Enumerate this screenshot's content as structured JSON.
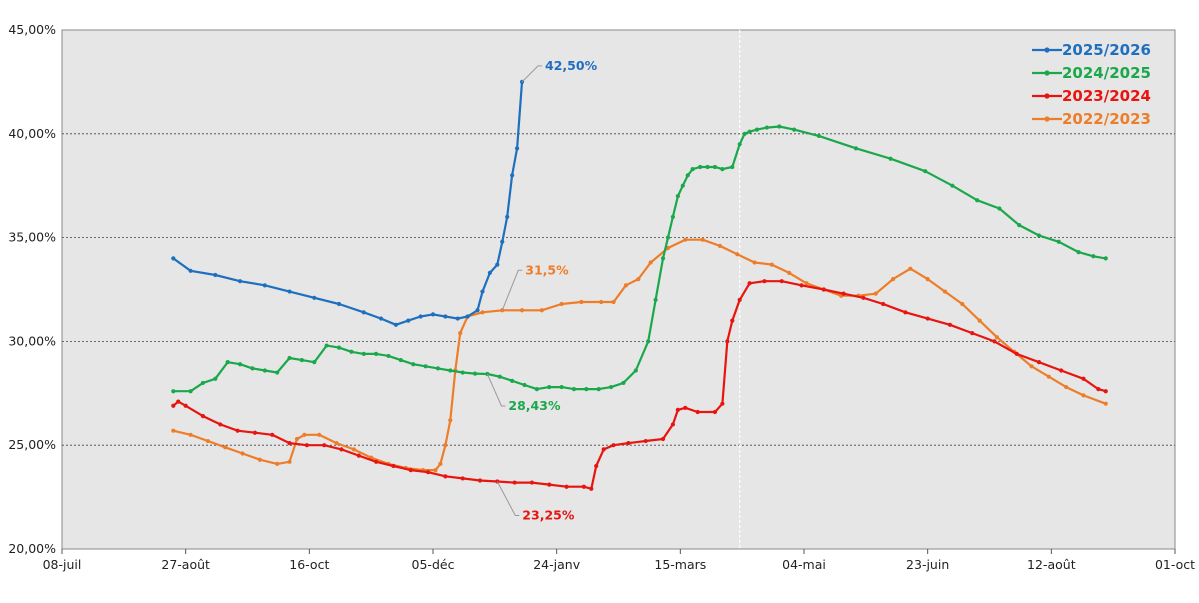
{
  "chart_data": {
    "type": "line",
    "title": "",
    "xlabel": "",
    "ylabel": "",
    "x_axis": {
      "type": "date",
      "range": [
        "2025-07-08",
        "2026-10-01"
      ],
      "tick_dates": [
        "2025-07-08",
        "2025-08-27",
        "2025-10-16",
        "2025-12-05",
        "2026-01-24",
        "2026-03-15",
        "2026-05-04",
        "2026-06-23",
        "2026-08-12",
        "2026-10-01"
      ],
      "tick_labels": [
        "08-juil",
        "27-août",
        "16-oct",
        "05-déc",
        "24-janv",
        "15-mars",
        "04-mai",
        "23-juin",
        "12-août",
        "01-oct"
      ]
    },
    "y_axis": {
      "range": [
        20,
        45
      ],
      "ticks": [
        20,
        25,
        30,
        35,
        40,
        45
      ],
      "tick_labels": [
        "20,00%",
        "25,00%",
        "30,00%",
        "35,00%",
        "40,00%",
        "45,00%"
      ],
      "unit": "%"
    },
    "grid": "horizontal dotted lines at y ticks",
    "reference_line_date": "2026-04-08",
    "plot_background": "#e6e6e6",
    "legend": {
      "placement": "top-right",
      "entries": [
        "2025/2026",
        "2024/2025",
        "2023/2024",
        "2022/2023"
      ]
    },
    "series": [
      {
        "name": "2025/2026",
        "color": "#1f6fbf",
        "x": [
          "2025-08-22",
          "2025-08-29",
          "2025-09-08",
          "2025-09-18",
          "2025-09-28",
          "2025-10-08",
          "2025-10-18",
          "2025-10-28",
          "2025-11-07",
          "2025-11-14",
          "2025-11-20",
          "2025-11-25",
          "2025-11-30",
          "2025-12-05",
          "2025-12-10",
          "2025-12-15",
          "2025-12-19",
          "2025-12-23",
          "2025-12-25",
          "2025-12-28",
          "2025-12-31",
          "2026-01-02",
          "2026-01-04",
          "2026-01-06",
          "2026-01-08",
          "2026-01-10"
        ],
        "y": [
          34.0,
          33.4,
          33.2,
          32.9,
          32.7,
          32.4,
          32.1,
          31.8,
          31.4,
          31.1,
          30.8,
          31.0,
          31.2,
          31.3,
          31.2,
          31.1,
          31.2,
          31.5,
          32.4,
          33.3,
          33.7,
          34.8,
          36.0,
          38.0,
          39.3,
          42.5
        ]
      },
      {
        "name": "2024/2025",
        "color": "#1aa84b",
        "x": [
          "2025-08-22",
          "2025-08-29",
          "2025-09-03",
          "2025-09-08",
          "2025-09-13",
          "2025-09-18",
          "2025-09-23",
          "2025-09-28",
          "2025-10-03",
          "2025-10-08",
          "2025-10-13",
          "2025-10-18",
          "2025-10-23",
          "2025-10-28",
          "2025-11-02",
          "2025-11-07",
          "2025-11-12",
          "2025-11-17",
          "2025-11-22",
          "2025-11-27",
          "2025-12-02",
          "2025-12-07",
          "2025-12-12",
          "2025-12-17",
          "2025-12-22",
          "2025-12-27",
          "2026-01-01",
          "2026-01-06",
          "2026-01-11",
          "2026-01-16",
          "2026-01-21",
          "2026-01-26",
          "2026-01-31",
          "2026-02-05",
          "2026-02-10",
          "2026-02-15",
          "2026-02-20",
          "2026-02-25",
          "2026-03-02",
          "2026-03-05",
          "2026-03-08",
          "2026-03-10",
          "2026-03-12",
          "2026-03-14",
          "2026-03-16",
          "2026-03-18",
          "2026-03-20",
          "2026-03-23",
          "2026-03-26",
          "2026-03-29",
          "2026-04-01",
          "2026-04-05",
          "2026-04-08",
          "2026-04-10",
          "2026-04-12",
          "2026-04-15",
          "2026-04-19",
          "2026-04-24",
          "2026-04-30",
          "2026-05-10",
          "2026-05-25",
          "2026-06-08",
          "2026-06-22",
          "2026-07-03",
          "2026-07-13",
          "2026-07-22",
          "2026-07-30",
          "2026-08-07",
          "2026-08-15",
          "2026-08-23",
          "2026-08-29",
          "2026-09-03"
        ],
        "y": [
          27.6,
          27.6,
          28.0,
          28.2,
          29.0,
          28.9,
          28.7,
          28.6,
          28.5,
          29.2,
          29.1,
          29.0,
          29.8,
          29.7,
          29.5,
          29.4,
          29.4,
          29.3,
          29.1,
          28.9,
          28.8,
          28.7,
          28.6,
          28.5,
          28.45,
          28.43,
          28.3,
          28.1,
          27.9,
          27.7,
          27.8,
          27.8,
          27.7,
          27.7,
          27.7,
          27.8,
          28.0,
          28.6,
          30.0,
          32.0,
          34.0,
          35.0,
          36.0,
          37.0,
          37.5,
          38.0,
          38.3,
          38.4,
          38.4,
          38.4,
          38.3,
          38.4,
          39.5,
          40.0,
          40.1,
          40.2,
          40.3,
          40.35,
          40.2,
          39.9,
          39.3,
          38.8,
          38.2,
          37.5,
          36.8,
          36.4,
          35.6,
          35.1,
          34.8,
          34.3,
          34.1,
          34.0
        ]
      },
      {
        "name": "2023/2024",
        "color": "#e8140f",
        "x": [
          "2025-08-22",
          "2025-08-24",
          "2025-08-27",
          "2025-09-03",
          "2025-09-10",
          "2025-09-17",
          "2025-09-24",
          "2025-10-01",
          "2025-10-08",
          "2025-10-15",
          "2025-10-22",
          "2025-10-29",
          "2025-11-05",
          "2025-11-12",
          "2025-11-19",
          "2025-11-26",
          "2025-12-03",
          "2025-12-10",
          "2025-12-17",
          "2025-12-24",
          "2025-12-31",
          "2026-01-07",
          "2026-01-14",
          "2026-01-21",
          "2026-01-28",
          "2026-02-04",
          "2026-02-07",
          "2026-02-09",
          "2026-02-12",
          "2026-02-16",
          "2026-02-22",
          "2026-03-01",
          "2026-03-08",
          "2026-03-12",
          "2026-03-14",
          "2026-03-17",
          "2026-03-22",
          "2026-03-29",
          "2026-04-01",
          "2026-04-03",
          "2026-04-05",
          "2026-04-08",
          "2026-04-12",
          "2026-04-18",
          "2026-04-25",
          "2026-05-03",
          "2026-05-12",
          "2026-05-20",
          "2026-05-28",
          "2026-06-05",
          "2026-06-14",
          "2026-06-23",
          "2026-07-02",
          "2026-07-11",
          "2026-07-20",
          "2026-07-29",
          "2026-08-07",
          "2026-08-16",
          "2026-08-25",
          "2026-08-31",
          "2026-09-03"
        ],
        "y": [
          26.9,
          27.1,
          26.9,
          26.4,
          26.0,
          25.7,
          25.6,
          25.5,
          25.1,
          25.0,
          25.0,
          24.8,
          24.5,
          24.2,
          24.0,
          23.8,
          23.7,
          23.5,
          23.4,
          23.3,
          23.25,
          23.2,
          23.2,
          23.1,
          23.0,
          23.0,
          22.9,
          24.0,
          24.8,
          25.0,
          25.1,
          25.2,
          25.3,
          26.0,
          26.7,
          26.8,
          26.6,
          26.6,
          27.0,
          30.0,
          31.0,
          32.0,
          32.8,
          32.9,
          32.9,
          32.7,
          32.5,
          32.3,
          32.1,
          31.8,
          31.4,
          31.1,
          30.8,
          30.4,
          30.0,
          29.4,
          29.0,
          28.6,
          28.2,
          27.7,
          27.6
        ]
      },
      {
        "name": "2022/2023",
        "color": "#ee7d2a",
        "x": [
          "2025-08-22",
          "2025-08-29",
          "2025-09-05",
          "2025-09-12",
          "2025-09-19",
          "2025-09-26",
          "2025-10-03",
          "2025-10-08",
          "2025-10-11",
          "2025-10-14",
          "2025-10-20",
          "2025-10-27",
          "2025-11-03",
          "2025-11-10",
          "2025-11-17",
          "2025-11-24",
          "2025-12-01",
          "2025-12-06",
          "2025-12-08",
          "2025-12-10",
          "2025-12-12",
          "2025-12-14",
          "2025-12-16",
          "2025-12-19",
          "2025-12-25",
          "2026-01-02",
          "2026-01-10",
          "2026-01-18",
          "2026-01-26",
          "2026-02-03",
          "2026-02-11",
          "2026-02-16",
          "2026-02-21",
          "2026-02-26",
          "2026-03-03",
          "2026-03-10",
          "2026-03-17",
          "2026-03-24",
          "2026-03-31",
          "2026-04-07",
          "2026-04-14",
          "2026-04-21",
          "2026-04-28",
          "2026-05-05",
          "2026-05-12",
          "2026-05-19",
          "2026-05-26",
          "2026-06-02",
          "2026-06-09",
          "2026-06-16",
          "2026-06-23",
          "2026-06-30",
          "2026-07-07",
          "2026-07-14",
          "2026-07-21",
          "2026-07-28",
          "2026-08-04",
          "2026-08-11",
          "2026-08-18",
          "2026-08-25",
          "2026-09-03"
        ],
        "y": [
          25.7,
          25.5,
          25.2,
          24.9,
          24.6,
          24.3,
          24.1,
          24.2,
          25.3,
          25.5,
          25.5,
          25.1,
          24.8,
          24.4,
          24.1,
          23.9,
          23.8,
          23.8,
          24.1,
          25.0,
          26.2,
          28.6,
          30.4,
          31.2,
          31.4,
          31.5,
          31.5,
          31.5,
          31.8,
          31.9,
          31.9,
          31.9,
          32.7,
          33.0,
          33.8,
          34.5,
          34.9,
          34.9,
          34.6,
          34.2,
          33.8,
          33.7,
          33.3,
          32.8,
          32.5,
          32.2,
          32.2,
          32.3,
          33.0,
          33.5,
          33.0,
          32.4,
          31.8,
          31.0,
          30.2,
          29.5,
          28.8,
          28.3,
          27.8,
          27.4,
          27.0
        ]
      }
    ],
    "annotations": [
      {
        "series": "2025/2026",
        "text": "42,50%",
        "date": "2026-01-10",
        "value": 42.5,
        "color": "#1f6fbf"
      },
      {
        "series": "2024/2025",
        "text": "28,43%",
        "date": "2025-12-27",
        "value": 28.43,
        "color": "#1aa84b"
      },
      {
        "series": "2023/2024",
        "text": "23,25%",
        "date": "2025-12-31",
        "value": 23.25,
        "color": "#e8140f"
      },
      {
        "series": "2022/2023",
        "text": "31,5%",
        "date": "2026-01-02",
        "value": 31.5,
        "color": "#ee7d2a"
      }
    ]
  }
}
